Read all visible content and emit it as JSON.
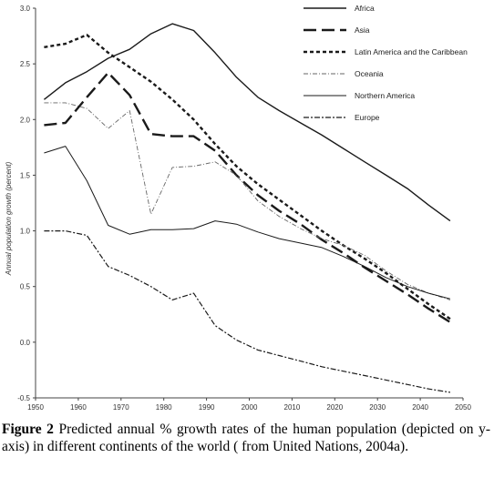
{
  "chart_data": {
    "type": "line",
    "xlabel": "",
    "ylabel": "Annual population growth",
    "ylabel_unit": "(percent)",
    "xlim": [
      1950,
      2050
    ],
    "ylim": [
      -0.5,
      3.0
    ],
    "xticks": [
      1950,
      1960,
      1970,
      1980,
      1990,
      2000,
      2010,
      2020,
      2030,
      2040,
      2050
    ],
    "yticks": [
      "-0.5",
      "0.0",
      "0.5",
      "1.0",
      "1.5",
      "2.0",
      "2.5",
      "3.0"
    ],
    "grid": false,
    "legend_position": "top-right",
    "series": [
      {
        "name": "Africa",
        "style": "solid",
        "x": [
          1952,
          1957,
          1962,
          1967,
          1972,
          1977,
          1982,
          1987,
          1992,
          1997,
          2002,
          2007,
          2012,
          2017,
          2022,
          2027,
          2032,
          2037,
          2042,
          2047
        ],
        "y": [
          2.18,
          2.33,
          2.43,
          2.55,
          2.63,
          2.77,
          2.86,
          2.8,
          2.6,
          2.38,
          2.2,
          2.08,
          1.97,
          1.86,
          1.74,
          1.62,
          1.5,
          1.38,
          1.23,
          1.09
        ]
      },
      {
        "name": "Asia",
        "style": "long-dash",
        "x": [
          1952,
          1957,
          1962,
          1967,
          1972,
          1977,
          1982,
          1987,
          1992,
          1997,
          2002,
          2007,
          2012,
          2017,
          2022,
          2027,
          2032,
          2037,
          2042,
          2047
        ],
        "y": [
          1.95,
          1.97,
          2.2,
          2.42,
          2.22,
          1.87,
          1.85,
          1.85,
          1.72,
          1.5,
          1.32,
          1.18,
          1.06,
          0.92,
          0.8,
          0.67,
          0.55,
          0.43,
          0.3,
          0.18
        ]
      },
      {
        "name": "Latin America and the Caribbean",
        "style": "short-dash",
        "x": [
          1952,
          1957,
          1962,
          1967,
          1972,
          1977,
          1982,
          1987,
          1992,
          1997,
          2002,
          2007,
          2012,
          2017,
          2022,
          2027,
          2032,
          2037,
          2042,
          2047
        ],
        "y": [
          2.65,
          2.68,
          2.76,
          2.6,
          2.47,
          2.34,
          2.18,
          2.0,
          1.78,
          1.58,
          1.42,
          1.28,
          1.14,
          1.0,
          0.87,
          0.75,
          0.62,
          0.48,
          0.34,
          0.21
        ]
      },
      {
        "name": "Oceania",
        "style": "dash-dot-thin",
        "x": [
          1952,
          1957,
          1962,
          1967,
          1972,
          1977,
          1982,
          1987,
          1992,
          1997,
          2002,
          2007,
          2012,
          2017,
          2022,
          2027,
          2032,
          2037,
          2042,
          2047
        ],
        "y": [
          2.15,
          2.15,
          2.1,
          1.92,
          2.08,
          1.15,
          1.57,
          1.58,
          1.62,
          1.5,
          1.27,
          1.13,
          1.02,
          0.93,
          0.87,
          0.78,
          0.64,
          0.52,
          0.44,
          0.38
        ]
      },
      {
        "name": "Northern America",
        "style": "solid-thin",
        "x": [
          1952,
          1957,
          1962,
          1967,
          1972,
          1977,
          1982,
          1987,
          1992,
          1997,
          2002,
          2007,
          2012,
          2017,
          2022,
          2027,
          2032,
          2037,
          2042,
          2047
        ],
        "y": [
          1.7,
          1.76,
          1.45,
          1.05,
          0.97,
          1.01,
          1.01,
          1.02,
          1.09,
          1.06,
          0.99,
          0.93,
          0.89,
          0.85,
          0.77,
          0.68,
          0.58,
          0.5,
          0.44,
          0.39
        ]
      },
      {
        "name": "Europe",
        "style": "dash-dot",
        "x": [
          1952,
          1957,
          1962,
          1967,
          1972,
          1977,
          1982,
          1987,
          1992,
          1997,
          2002,
          2007,
          2012,
          2017,
          2022,
          2027,
          2032,
          2037,
          2042,
          2047
        ],
        "y": [
          1.0,
          1.0,
          0.96,
          0.68,
          0.6,
          0.5,
          0.38,
          0.44,
          0.15,
          0.02,
          -0.07,
          -0.12,
          -0.17,
          -0.22,
          -0.26,
          -0.3,
          -0.34,
          -0.38,
          -0.42,
          -0.45
        ]
      }
    ]
  },
  "caption": {
    "label": "Figure 2",
    "text": " Predicted annual % growth rates of the human population (depicted on y-axis) in different continents of the world ( from United Nations, 2004a)."
  },
  "colors": {
    "line": "#1a1a1a",
    "light_line": "#666666",
    "axis": "#444444"
  }
}
